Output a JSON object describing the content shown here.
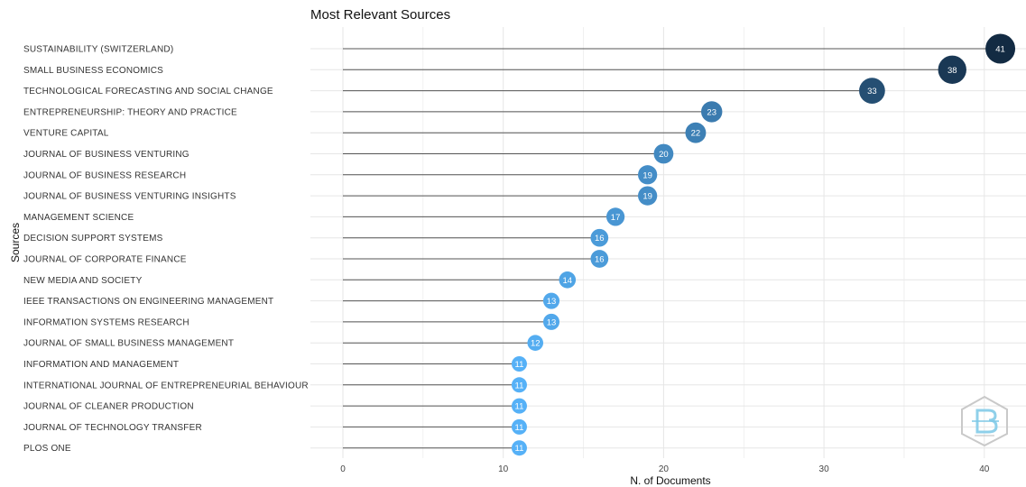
{
  "chart_data": {
    "type": "lollipop",
    "title": "Most Relevant Sources",
    "xlabel": "N. of Documents",
    "ylabel": "Sources",
    "xlim": [
      -2,
      42
    ],
    "xticks": [
      0,
      10,
      20,
      30,
      40
    ],
    "grid": true,
    "categories": [
      "SUSTAINABILITY (SWITZERLAND)",
      "SMALL BUSINESS ECONOMICS",
      "TECHNOLOGICAL FORECASTING AND SOCIAL CHANGE",
      "ENTREPRENEURSHIP: THEORY AND PRACTICE",
      "VENTURE CAPITAL",
      "JOURNAL OF BUSINESS VENTURING",
      "JOURNAL OF BUSINESS RESEARCH",
      "JOURNAL OF BUSINESS VENTURING INSIGHTS",
      "MANAGEMENT SCIENCE",
      "DECISION SUPPORT SYSTEMS",
      "JOURNAL OF CORPORATE FINANCE",
      "NEW MEDIA AND SOCIETY",
      "IEEE TRANSACTIONS ON ENGINEERING MANAGEMENT",
      "INFORMATION SYSTEMS RESEARCH",
      "JOURNAL OF SMALL BUSINESS MANAGEMENT",
      "INFORMATION AND MANAGEMENT",
      "INTERNATIONAL JOURNAL OF ENTREPRENEURIAL BEHAVIOUR",
      "JOURNAL OF CLEANER PRODUCTION",
      "JOURNAL OF TECHNOLOGY TRANSFER",
      "PLOS ONE"
    ],
    "values": [
      41,
      38,
      33,
      23,
      22,
      20,
      19,
      19,
      17,
      16,
      16,
      14,
      13,
      13,
      12,
      11,
      11,
      11,
      11,
      11
    ],
    "colors": {
      "low": "#56b1f7",
      "high": "#132b43",
      "stem": "#555555",
      "grid": "#e6e6e6"
    }
  },
  "watermark": {
    "icon": "bibliometrix-hexagon-logo-icon"
  }
}
